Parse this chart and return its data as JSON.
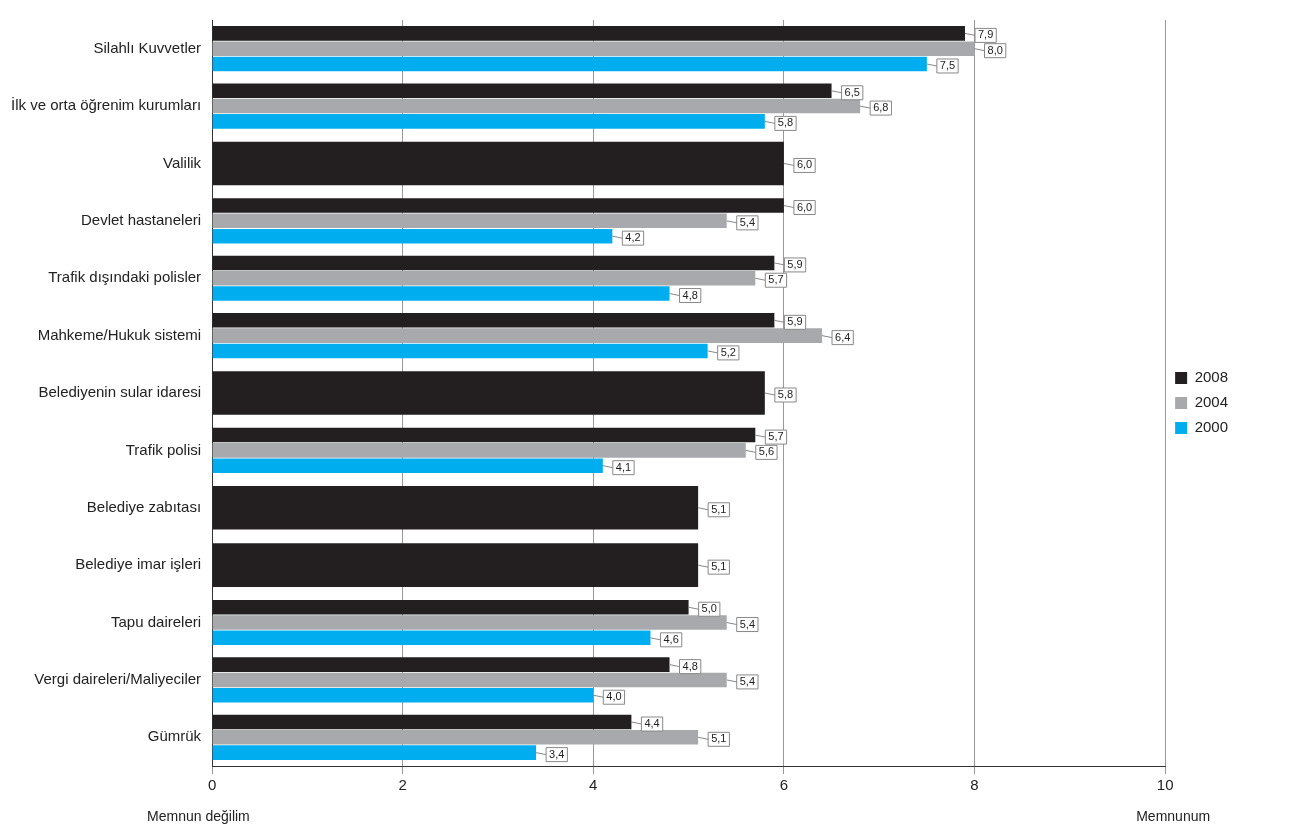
{
  "chart_data": {
    "type": "bar",
    "orientation": "horizontal",
    "categories": [
      "Silahlı Kuvvetler",
      "İlk ve orta öğrenim kurumları",
      "Valilik",
      "Devlet hastaneleri",
      "Trafik dışındaki polisler",
      "Mahkeme/Hukuk sistemi",
      "Belediyenin sular idaresi",
      "Trafik polisi",
      "Belediye zabıtası",
      "Belediye imar işleri",
      "Tapu daireleri",
      "Vergi daireleri/Maliyeciler",
      "Gümrük"
    ],
    "series": [
      {
        "name": "2008",
        "color": "#231f20",
        "values": [
          7.9,
          6.5,
          6.0,
          6.0,
          5.9,
          5.9,
          5.8,
          5.7,
          5.1,
          5.1,
          5.0,
          4.8,
          4.4
        ],
        "value_labels": [
          "7,9",
          "6,5",
          "6,0",
          "6,0",
          "5,9",
          "5,9",
          "5,8",
          "5,7",
          "5,1",
          "5,1",
          "5,0",
          "4,8",
          "4,4"
        ]
      },
      {
        "name": "2004",
        "color": "#a7a9ac",
        "values": [
          8.0,
          6.8,
          null,
          5.4,
          5.7,
          6.4,
          null,
          5.6,
          null,
          null,
          5.4,
          5.4,
          5.1
        ],
        "value_labels": [
          "8,0",
          "6,8",
          null,
          "5,4",
          "5,7",
          "6,4",
          null,
          "5,6",
          null,
          null,
          "5,4",
          "5,4",
          "5,1"
        ]
      },
      {
        "name": "2000",
        "color": "#00aeef",
        "values": [
          7.5,
          5.8,
          null,
          4.2,
          4.8,
          5.2,
          null,
          4.1,
          null,
          null,
          4.6,
          4.0,
          3.4
        ],
        "value_labels": [
          "7,5",
          "5,8",
          null,
          "4,2",
          "4,8",
          "5,2",
          null,
          "4,1",
          null,
          null,
          "4,6",
          "4,0",
          "3,4"
        ]
      }
    ],
    "xlim": [
      0,
      10
    ],
    "xticks": [
      0,
      2,
      4,
      6,
      8,
      10
    ],
    "grid": "x",
    "legend": "right",
    "annotations": [
      "Memnun değilim",
      "Memnunum"
    ]
  }
}
